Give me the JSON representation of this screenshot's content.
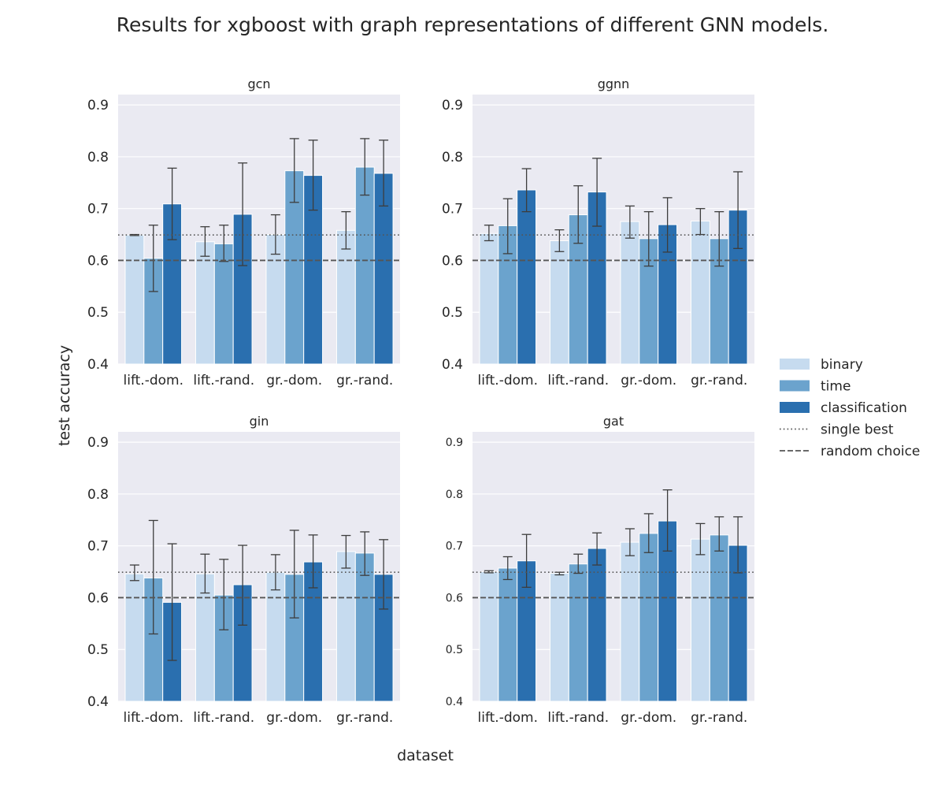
{
  "chart_data": {
    "type": "bar",
    "title": "Results for xgboost with graph representations of different GNN models.",
    "xlabel": "dataset",
    "ylabel": "test accuracy",
    "ylim": [
      0.4,
      0.92
    ],
    "yticks": [
      0.4,
      0.5,
      0.6,
      0.7,
      0.8,
      0.9
    ],
    "categories": [
      "lift.-dom.",
      "lift.-rand.",
      "gr.-dom.",
      "gr.-rand."
    ],
    "grid": true,
    "legend_position": "right",
    "legend": [
      {
        "label": "binary",
        "kind": "patch",
        "color": "#c6dbef"
      },
      {
        "label": "time",
        "kind": "patch",
        "color": "#6ba3cd"
      },
      {
        "label": "classification",
        "kind": "patch",
        "color": "#2a6faf"
      },
      {
        "label": "single best",
        "kind": "dotted"
      },
      {
        "label": "random choice",
        "kind": "dashed"
      }
    ],
    "reference_lines": {
      "single_best": 0.649,
      "random_choice": 0.6
    },
    "series_colors": {
      "binary": "#c6dbef",
      "time": "#6ba3cd",
      "classification": "#2a6faf"
    },
    "panels": [
      {
        "title": "gcn",
        "series": [
          {
            "name": "binary",
            "values": [
              0.649,
              0.636,
              0.65,
              0.658
            ],
            "err_low": [
              0.648,
              0.608,
              0.612,
              0.622
            ],
            "err_high": [
              0.65,
              0.665,
              0.688,
              0.694
            ]
          },
          {
            "name": "time",
            "values": [
              0.604,
              0.632,
              0.773,
              0.78
            ],
            "err_low": [
              0.54,
              0.598,
              0.712,
              0.726
            ],
            "err_high": [
              0.668,
              0.668,
              0.835,
              0.835
            ]
          },
          {
            "name": "classification",
            "values": [
              0.709,
              0.689,
              0.764,
              0.768
            ],
            "err_low": [
              0.64,
              0.59,
              0.697,
              0.705
            ],
            "err_high": [
              0.778,
              0.788,
              0.832,
              0.832
            ]
          }
        ]
      },
      {
        "title": "ggnn",
        "series": [
          {
            "name": "binary",
            "values": [
              0.652,
              0.638,
              0.675,
              0.676
            ],
            "err_low": [
              0.638,
              0.617,
              0.643,
              0.65
            ],
            "err_high": [
              0.668,
              0.659,
              0.705,
              0.7
            ]
          },
          {
            "name": "time",
            "values": [
              0.667,
              0.688,
              0.642,
              0.642
            ],
            "err_low": [
              0.613,
              0.633,
              0.589,
              0.589
            ],
            "err_high": [
              0.719,
              0.744,
              0.694,
              0.694
            ]
          },
          {
            "name": "classification",
            "values": [
              0.736,
              0.732,
              0.669,
              0.697
            ],
            "err_low": [
              0.694,
              0.666,
              0.616,
              0.623
            ],
            "err_high": [
              0.777,
              0.797,
              0.721,
              0.771
            ]
          }
        ]
      },
      {
        "title": "gin",
        "series": [
          {
            "name": "binary",
            "values": [
              0.646,
              0.646,
              0.649,
              0.689
            ],
            "err_low": [
              0.633,
              0.609,
              0.615,
              0.657
            ],
            "err_high": [
              0.663,
              0.684,
              0.683,
              0.72
            ]
          },
          {
            "name": "time",
            "values": [
              0.638,
              0.605,
              0.645,
              0.686
            ],
            "err_low": [
              0.53,
              0.538,
              0.561,
              0.643
            ],
            "err_high": [
              0.749,
              0.674,
              0.73,
              0.727
            ]
          },
          {
            "name": "classification",
            "values": [
              0.591,
              0.625,
              0.669,
              0.645
            ],
            "err_low": [
              0.479,
              0.547,
              0.619,
              0.578
            ],
            "err_high": [
              0.704,
              0.701,
              0.721,
              0.712
            ]
          }
        ]
      },
      {
        "title": "gat",
        "series": [
          {
            "name": "binary",
            "values": [
              0.65,
              0.647,
              0.707,
              0.713
            ],
            "err_low": [
              0.648,
              0.644,
              0.681,
              0.683
            ],
            "err_high": [
              0.652,
              0.649,
              0.733,
              0.743
            ]
          },
          {
            "name": "time",
            "values": [
              0.657,
              0.665,
              0.724,
              0.721
            ],
            "err_low": [
              0.635,
              0.647,
              0.687,
              0.69
            ],
            "err_high": [
              0.679,
              0.684,
              0.762,
              0.756
            ]
          },
          {
            "name": "classification",
            "values": [
              0.671,
              0.695,
              0.748,
              0.701
            ],
            "err_low": [
              0.62,
              0.663,
              0.69,
              0.648
            ],
            "err_high": [
              0.722,
              0.725,
              0.808,
              0.756
            ]
          }
        ]
      }
    ]
  }
}
